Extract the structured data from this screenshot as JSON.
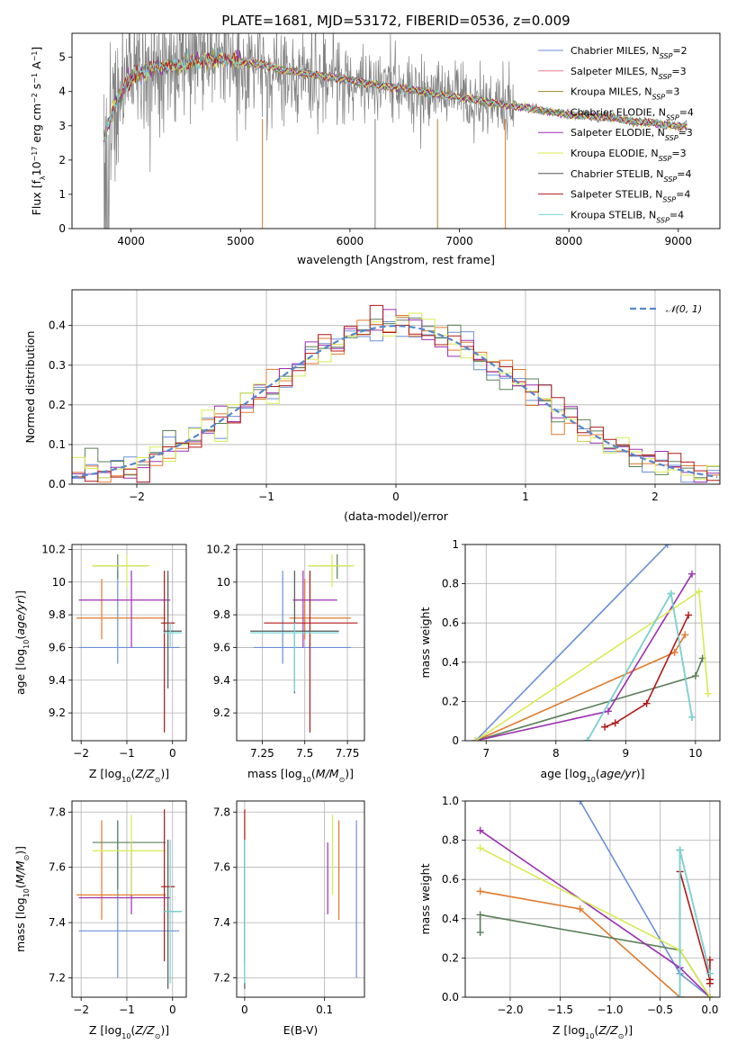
{
  "figure_title": "PLATE=1681, MJD=53172, FIBERID=0536, z=0.009",
  "colors": {
    "Chabrier MILES": "#6a8fd6",
    "Salpeter MILES": "#e87c8f",
    "Kroupa MILES": "#9a8a2a",
    "Chabrier ELODIE": "#5a7f58",
    "Salpeter ELODIE": "#9b30b0",
    "Kroupa ELODIE": "#d8ea50",
    "Chabrier STELIB": "#555555",
    "Salpeter STELIB": "#b01818",
    "Kroupa STELIB": "#7ad8d8",
    "orange": "#e07a2e",
    "grey_spectrum": "#808080"
  },
  "chart_data": [
    {
      "id": "spectrum",
      "type": "line",
      "xlabel": "wavelength [Angstrom, rest frame]",
      "ylabel": "Flux [f_λ10^-17 erg cm^-2 s^-1 A^-1]",
      "xlim": [
        3460,
        9380
      ],
      "ylim": [
        0,
        5.7
      ],
      "xticks": [
        "4000",
        "5000",
        "6000",
        "7000",
        "8000",
        "9000"
      ],
      "yticks": [
        "0",
        "1",
        "2",
        "3",
        "4",
        "5"
      ],
      "grid": false,
      "legend_placement": "top-right",
      "legend": [
        {
          "label": "Chabrier MILES, N_SSP=2",
          "color": "#6a8fd6"
        },
        {
          "label": "Salpeter MILES, N_SSP=3",
          "color": "#e87c8f"
        },
        {
          "label": "Kroupa MILES, N_SSP=3",
          "color": "#9a8a2a"
        },
        {
          "label": "Chabrier ELODIE, N_SSP=4",
          "color": "#5a7f58"
        },
        {
          "label": "Salpeter ELODIE, N_SSP=3",
          "color": "#9b30b0"
        },
        {
          "label": "Kroupa ELODIE, N_SSP=3",
          "color": "#d8ea50"
        },
        {
          "label": "Chabrier STELIB, N_SSP=4",
          "color": "#555555"
        },
        {
          "label": "Salpeter STELIB, N_SSP=4",
          "color": "#b01818"
        },
        {
          "label": "Kroupa STELIB, N_SSP=4",
          "color": "#7ad8d8"
        }
      ],
      "model_continuum": {
        "x": [
          3750,
          3850,
          3950,
          4050,
          4150,
          4250,
          4350,
          4450,
          4550,
          4650,
          4750,
          4850,
          4950,
          5050,
          5150,
          5250,
          5350,
          5450,
          5550,
          5650,
          5750,
          5850,
          5950,
          6050,
          6150,
          6250,
          6350,
          6450,
          6550,
          6650,
          6750,
          6850,
          6950,
          7050,
          7150,
          7250,
          7350,
          7450,
          7550,
          7650,
          7750,
          7850,
          7950,
          8050,
          8150,
          8250,
          8350,
          8450,
          8550,
          8650,
          8750,
          8850,
          8950,
          9050
        ],
        "y": [
          2.6,
          3.6,
          4.2,
          4.5,
          4.6,
          4.7,
          4.75,
          4.8,
          4.85,
          4.9,
          4.95,
          4.95,
          4.9,
          4.85,
          4.8,
          4.75,
          4.65,
          4.6,
          4.55,
          4.5,
          4.45,
          4.4,
          4.35,
          4.3,
          4.25,
          4.2,
          4.15,
          4.1,
          4.05,
          4.0,
          3.95,
          3.9,
          3.85,
          3.8,
          3.75,
          3.7,
          3.65,
          3.6,
          3.55,
          3.5,
          3.45,
          3.4,
          3.35,
          3.3,
          3.3,
          3.25,
          3.25,
          3.2,
          3.15,
          3.1,
          3.1,
          3.05,
          3.0,
          3.0
        ]
      },
      "noisy_data_range": [
        3750,
        7450
      ],
      "dips": [
        5200,
        6230,
        6800,
        7420
      ]
    },
    {
      "id": "residuals",
      "type": "histogram",
      "xlabel": "(data-model)/error",
      "ylabel": "Normed distribution",
      "xlim": [
        -2.5,
        2.5
      ],
      "ylim": [
        0,
        0.49
      ],
      "xticks": [
        "-2",
        "-1",
        "0",
        "1",
        "2"
      ],
      "yticks": [
        "0.0",
        "0.1",
        "0.2",
        "0.3",
        "0.4"
      ],
      "grid": true,
      "legend_placement": "top-right",
      "legend": [
        {
          "label": "N(0,1)",
          "style": "dashed",
          "color": "#5588cc"
        }
      ],
      "bin_width": 0.1,
      "series_colors": [
        "#6a8fd6",
        "#e07a2e",
        "#5a7f58",
        "#9b30b0",
        "#d8ea50",
        "#b01818"
      ]
    },
    {
      "id": "age_vs_Z",
      "type": "scatter",
      "xlabel": "Z [log10(Z/Z_sun)]",
      "ylabel": "age  [log10(age/yr)]",
      "xlim": [
        -2.2,
        0.3
      ],
      "ylim": [
        9.03,
        10.23
      ],
      "xticks": [
        -2,
        -1,
        0
      ],
      "yticks": [
        9.2,
        9.4,
        9.6,
        9.8,
        10.0,
        10.2
      ],
      "grid": true,
      "points": [
        {
          "x": -1.2,
          "y": 9.6,
          "ex": [
            -2.05,
            0.15
          ],
          "ey": [
            9.5,
            10.07
          ],
          "color": "#6a8fd6"
        },
        {
          "x": -1.55,
          "y": 9.78,
          "ex": [
            -2.1,
            -0.15
          ],
          "ey": [
            9.65,
            10.02
          ],
          "color": "#e07a2e"
        },
        {
          "x": -0.9,
          "y": 9.89,
          "ex": [
            -2.05,
            -0.05
          ],
          "ey": [
            9.6,
            10.07
          ],
          "color": "#9b30b0"
        },
        {
          "x": -1.2,
          "y": 10.1,
          "ex": [
            -1.75,
            -0.55
          ],
          "ey": [
            10.02,
            10.17
          ],
          "color": "#5a7f58"
        },
        {
          "x": -1.0,
          "y": 10.1,
          "ex": [
            -1.75,
            -0.5
          ],
          "ey": [
            9.97,
            10.17
          ],
          "color": "#d8ea50"
        },
        {
          "x": -0.18,
          "y": 9.75,
          "ex": [
            -0.25,
            0.05
          ],
          "ey": [
            9.08,
            10.07
          ],
          "color": "#b01818"
        },
        {
          "x": -0.1,
          "y": 9.7,
          "ex": [
            -0.2,
            0.2
          ],
          "ey": [
            9.35,
            10.07
          ],
          "color": "#555555"
        },
        {
          "x": -0.05,
          "y": 9.69,
          "ex": [
            -0.2,
            0.2
          ],
          "ey": [
            9.6,
            9.75
          ],
          "color": "#7ad8d8"
        }
      ]
    },
    {
      "id": "age_vs_mass",
      "type": "scatter",
      "xlabel": "mass [log10(M/M_sun)]",
      "ylabel": "",
      "xlim": [
        7.1,
        7.85
      ],
      "ylim": [
        9.03,
        10.23
      ],
      "xticks": [
        7.25,
        7.5,
        7.75
      ],
      "yticks": [
        9.2,
        9.4,
        9.6,
        9.8,
        10.0,
        10.2
      ],
      "grid": true,
      "points": [
        {
          "x": 7.37,
          "y": 9.6,
          "ex": [
            7.2,
            7.77
          ],
          "ey": [
            9.5,
            10.07
          ],
          "color": "#6a8fd6"
        },
        {
          "x": 7.5,
          "y": 9.78,
          "ex": [
            7.41,
            7.77
          ],
          "ey": [
            9.65,
            10.02
          ],
          "color": "#e07a2e"
        },
        {
          "x": 7.49,
          "y": 9.89,
          "ex": [
            7.43,
            7.69
          ],
          "ey": [
            9.6,
            10.07
          ],
          "color": "#9b30b0"
        },
        {
          "x": 7.69,
          "y": 10.1,
          "ex": [
            7.52,
            7.77
          ],
          "ey": [
            10.02,
            10.17
          ],
          "color": "#5a7f58"
        },
        {
          "x": 7.66,
          "y": 10.1,
          "ex": [
            7.52,
            7.79
          ],
          "ey": [
            9.97,
            10.17
          ],
          "color": "#d8ea50"
        },
        {
          "x": 7.53,
          "y": 9.75,
          "ex": [
            7.26,
            7.81
          ],
          "ey": [
            9.08,
            10.07
          ],
          "color": "#b01818"
        },
        {
          "x": 7.44,
          "y": 9.7,
          "ex": [
            7.18,
            7.7
          ],
          "ey": [
            9.32,
            10.07
          ],
          "color": "#555555"
        },
        {
          "x": 7.44,
          "y": 9.69,
          "ex": [
            7.18,
            7.7
          ],
          "ey": [
            9.33,
            9.75
          ],
          "color": "#7ad8d8"
        }
      ]
    },
    {
      "id": "weight_vs_age",
      "type": "line",
      "xlabel": "age  [log10(age/yr)]",
      "ylabel": "mass weight",
      "xlim": [
        6.7,
        10.35
      ],
      "ylim": [
        0,
        1.0
      ],
      "xticks": [
        7,
        8,
        9,
        10
      ],
      "yticks": [
        0.0,
        0.2,
        0.4,
        0.6,
        0.8,
        1.0
      ],
      "grid": true,
      "series": [
        {
          "color": "#6a8fd6",
          "x": [
            6.85,
            9.6
          ],
          "y": [
            0.0,
            1.0
          ]
        },
        {
          "color": "#e07a2e",
          "x": [
            6.85,
            9.7,
            9.85
          ],
          "y": [
            0.0,
            0.45,
            0.54
          ]
        },
        {
          "color": "#5a7f58",
          "x": [
            6.85,
            10.0,
            10.1
          ],
          "y": [
            0.0,
            0.33,
            0.42
          ]
        },
        {
          "color": "#9b30b0",
          "x": [
            6.85,
            8.75,
            9.95
          ],
          "y": [
            0.0,
            0.15,
            0.85
          ]
        },
        {
          "color": "#d8ea50",
          "x": [
            6.85,
            10.05,
            10.18
          ],
          "y": [
            0.0,
            0.76,
            0.24
          ]
        },
        {
          "color": "#b01818",
          "x": [
            8.7,
            8.85,
            9.3,
            9.9
          ],
          "y": [
            0.07,
            0.09,
            0.19,
            0.64
          ]
        },
        {
          "color": "#555555",
          "x": [
            8.45,
            9.65,
            9.95
          ],
          "y": [
            0.0,
            0.75,
            0.12
          ]
        },
        {
          "color": "#7ad8d8",
          "x": [
            8.45,
            9.65,
            9.95
          ],
          "y": [
            0.0,
            0.75,
            0.12
          ]
        }
      ]
    },
    {
      "id": "mass_vs_Z",
      "type": "scatter",
      "xlabel": "Z [log10(Z/Z_sun)]",
      "ylabel": "mass [log10(M/M_sun)]",
      "xlim": [
        -2.2,
        0.3
      ],
      "ylim": [
        7.13,
        7.84
      ],
      "xticks": [
        -2,
        -1,
        0
      ],
      "yticks": [
        7.2,
        7.4,
        7.6,
        7.8
      ],
      "grid": true,
      "points": [
        {
          "x": -1.2,
          "y": 7.37,
          "ex": [
            -2.05,
            0.15
          ],
          "ey": [
            7.2,
            7.77
          ],
          "color": "#6a8fd6"
        },
        {
          "x": -1.55,
          "y": 7.5,
          "ex": [
            -2.1,
            -0.15
          ],
          "ey": [
            7.41,
            7.77
          ],
          "color": "#e07a2e"
        },
        {
          "x": -0.9,
          "y": 7.49,
          "ex": [
            -2.05,
            -0.05
          ],
          "ey": [
            7.43,
            7.69
          ],
          "color": "#9b30b0"
        },
        {
          "x": -1.2,
          "y": 7.69,
          "ex": [
            -1.75,
            -0.15
          ],
          "ey": [
            7.52,
            7.77
          ],
          "color": "#5a7f58"
        },
        {
          "x": -0.9,
          "y": 7.66,
          "ex": [
            -1.75,
            -0.15
          ],
          "ey": [
            7.5,
            7.79
          ],
          "color": "#d8ea50"
        },
        {
          "x": -0.18,
          "y": 7.53,
          "ex": [
            -0.25,
            0.05
          ],
          "ey": [
            7.26,
            7.81
          ],
          "color": "#b01818"
        },
        {
          "x": -0.1,
          "y": 7.44,
          "ex": [
            -0.2,
            0.2
          ],
          "ey": [
            7.16,
            7.7
          ],
          "color": "#555555"
        },
        {
          "x": -0.05,
          "y": 7.44,
          "ex": [
            -0.2,
            0.2
          ],
          "ey": [
            7.18,
            7.7
          ],
          "color": "#7ad8d8"
        }
      ]
    },
    {
      "id": "mass_vs_ebv",
      "type": "scatter",
      "xlabel": "E(B-V)",
      "ylabel": "",
      "xlim": [
        -0.01,
        0.15
      ],
      "ylim": [
        7.13,
        7.84
      ],
      "xticks": [
        "0.0",
        "0.1"
      ],
      "yticks": [
        7.2,
        7.4,
        7.6,
        7.8
      ],
      "grid": true,
      "points": [
        {
          "x": 0.14,
          "y": 7.37,
          "ey": [
            7.2,
            7.77
          ],
          "color": "#6a8fd6"
        },
        {
          "x": 0.118,
          "y": 7.5,
          "ey": [
            7.41,
            7.77
          ],
          "color": "#e07a2e"
        },
        {
          "x": 0.104,
          "y": 7.49,
          "ey": [
            7.43,
            7.69
          ],
          "color": "#9b30b0"
        },
        {
          "x": 0.11,
          "y": 7.66,
          "ey": [
            7.5,
            7.79
          ],
          "color": "#d8ea50"
        },
        {
          "x": 0.0,
          "y": 7.53,
          "ey": [
            7.26,
            7.81
          ],
          "color": "#b01818"
        },
        {
          "x": 0.0,
          "y": 7.44,
          "ey": [
            7.16,
            7.7
          ],
          "color": "#555555"
        },
        {
          "x": 0.0,
          "y": 7.44,
          "ey": [
            7.18,
            7.7
          ],
          "color": "#7ad8d8"
        }
      ]
    },
    {
      "id": "weight_vs_Z",
      "type": "line",
      "xlabel": "Z [log10(Z/Z_sun)]",
      "ylabel": "mass weight",
      "xlim": [
        -2.45,
        0.1
      ],
      "ylim": [
        0,
        1.0
      ],
      "xticks": [
        "-2.0",
        "-1.5",
        "-1.0",
        "-0.5",
        "0.0"
      ],
      "yticks": [
        "0.0",
        "0.2",
        "0.4",
        "0.6",
        "0.8",
        "1.0"
      ],
      "grid": true,
      "series": [
        {
          "color": "#6a8fd6",
          "x": [
            -1.3,
            -0.3,
            0.0
          ],
          "y": [
            1.0,
            0.12,
            0.0
          ]
        },
        {
          "color": "#e07a2e",
          "x": [
            -2.3,
            -1.3,
            -0.3,
            0.0
          ],
          "y": [
            0.54,
            0.45,
            0.0,
            0.0
          ]
        },
        {
          "color": "#5a7f58",
          "x": [
            -2.3,
            -2.3,
            -0.3,
            0.0
          ],
          "y": [
            0.33,
            0.42,
            0.24,
            0.0
          ]
        },
        {
          "color": "#9b30b0",
          "x": [
            -2.3,
            -0.3,
            0.0
          ],
          "y": [
            0.85,
            0.15,
            0.0
          ]
        },
        {
          "color": "#d8ea50",
          "x": [
            -2.3,
            -0.3,
            0.0
          ],
          "y": [
            0.76,
            0.24,
            0.0
          ]
        },
        {
          "color": "#b01818",
          "x": [
            -0.3,
            0.0,
            0.0,
            0.0
          ],
          "y": [
            0.64,
            0.09,
            0.07,
            0.19
          ]
        },
        {
          "color": "#555555",
          "x": [
            -0.3,
            -0.3,
            0.0
          ],
          "y": [
            0.0,
            0.75,
            0.12
          ]
        },
        {
          "color": "#7ad8d8",
          "x": [
            -0.3,
            -0.3,
            0.0
          ],
          "y": [
            0.0,
            0.75,
            0.12
          ]
        }
      ]
    }
  ]
}
